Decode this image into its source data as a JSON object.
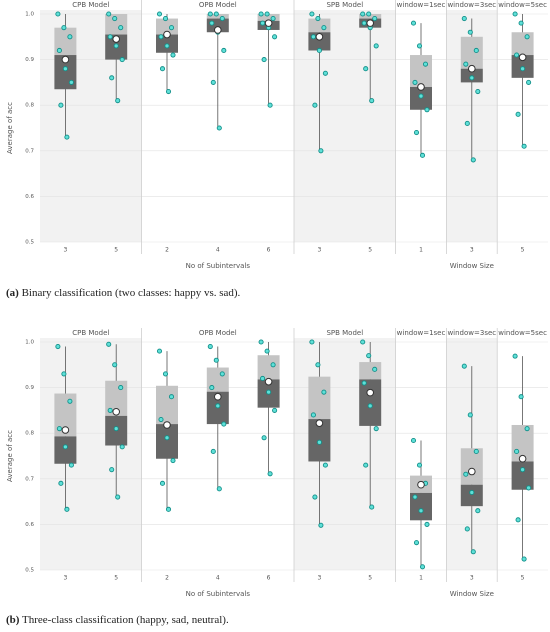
{
  "chart_data": [
    {
      "type": "box",
      "ylabel": "Average of acc",
      "ylim": [
        0.5,
        1.0
      ],
      "yticks": [
        0.5,
        0.6,
        0.7,
        0.8,
        0.9,
        {
          "value": 1.0,
          "label": "1.0"
        }
      ],
      "groups": [
        {
          "label": "No of Subintervals",
          "facets": [
            {
              "title": "CPB Model",
              "boxes": [
                {
                  "category": "3",
                  "min": 0.73,
                  "q1": 0.835,
                  "median": 0.91,
                  "q3": 0.97,
                  "max": 1.0,
                  "mean": 0.9,
                  "points": [
                    1.0,
                    0.97,
                    0.95,
                    0.92,
                    0.88,
                    0.85,
                    0.8,
                    0.73
                  ]
                },
                {
                  "category": "5",
                  "min": 0.81,
                  "q1": 0.9,
                  "median": 0.955,
                  "q3": 1.0,
                  "max": 1.0,
                  "mean": 0.945,
                  "points": [
                    1.0,
                    0.99,
                    0.97,
                    0.95,
                    0.93,
                    0.9,
                    0.86,
                    0.81
                  ]
                }
              ]
            },
            {
              "title": "OPB Model",
              "boxes": [
                {
                  "category": "2",
                  "min": 0.83,
                  "q1": 0.915,
                  "median": 0.955,
                  "q3": 0.99,
                  "max": 1.0,
                  "mean": 0.955,
                  "points": [
                    1.0,
                    0.99,
                    0.97,
                    0.95,
                    0.93,
                    0.91,
                    0.88,
                    0.83
                  ]
                },
                {
                  "category": "4",
                  "min": 0.75,
                  "q1": 0.96,
                  "median": 0.99,
                  "q3": 1.0,
                  "max": 1.0,
                  "mean": 0.965,
                  "points": [
                    1.0,
                    1.0,
                    0.99,
                    0.98,
                    0.96,
                    0.92,
                    0.85,
                    0.75
                  ]
                },
                {
                  "category": "6",
                  "min": 0.8,
                  "q1": 0.965,
                  "median": 0.985,
                  "q3": 1.0,
                  "max": 1.0,
                  "mean": 0.98,
                  "points": [
                    1.0,
                    1.0,
                    0.99,
                    0.98,
                    0.97,
                    0.95,
                    0.9,
                    0.8
                  ]
                }
              ]
            },
            {
              "title": "SPB Model",
              "boxes": [
                {
                  "category": "3",
                  "min": 0.7,
                  "q1": 0.92,
                  "median": 0.96,
                  "q3": 0.99,
                  "max": 1.0,
                  "mean": 0.95,
                  "points": [
                    1.0,
                    0.99,
                    0.97,
                    0.95,
                    0.92,
                    0.87,
                    0.8,
                    0.7
                  ]
                },
                {
                  "category": "5",
                  "min": 0.81,
                  "q1": 0.97,
                  "median": 0.99,
                  "q3": 1.0,
                  "max": 1.0,
                  "mean": 0.98,
                  "points": [
                    1.0,
                    1.0,
                    0.99,
                    0.98,
                    0.97,
                    0.93,
                    0.88,
                    0.81
                  ]
                }
              ]
            }
          ]
        },
        {
          "label": "Window Size",
          "facets": [
            {
              "title": "window=1sec",
              "boxes": [
                {
                  "category": "1",
                  "min": 0.69,
                  "q1": 0.79,
                  "median": 0.84,
                  "q3": 0.91,
                  "max": 0.98,
                  "mean": 0.84,
                  "points": [
                    0.98,
                    0.93,
                    0.89,
                    0.85,
                    0.82,
                    0.79,
                    0.74,
                    0.69
                  ]
                }
              ]
            },
            {
              "title": "window=3sec",
              "boxes": [
                {
                  "category": "3",
                  "min": 0.68,
                  "q1": 0.85,
                  "median": 0.88,
                  "q3": 0.95,
                  "max": 0.99,
                  "mean": 0.88,
                  "points": [
                    0.99,
                    0.96,
                    0.92,
                    0.89,
                    0.86,
                    0.83,
                    0.76,
                    0.68
                  ]
                }
              ]
            },
            {
              "title": "window=5sec",
              "boxes": [
                {
                  "category": "5",
                  "min": 0.71,
                  "q1": 0.86,
                  "median": 0.91,
                  "q3": 0.96,
                  "max": 1.0,
                  "mean": 0.905,
                  "points": [
                    1.0,
                    0.98,
                    0.95,
                    0.91,
                    0.88,
                    0.85,
                    0.78,
                    0.71
                  ]
                }
              ]
            }
          ]
        }
      ],
      "caption": {
        "tag": "(a)",
        "text": "Binary classification (two classes: happy vs. sad)."
      }
    },
    {
      "type": "box",
      "ylabel": "Average of acc",
      "ylim": [
        0.5,
        1.0
      ],
      "yticks": [
        0.5,
        0.6,
        0.7,
        0.8,
        0.9,
        {
          "value": 1.0,
          "label": "1.0"
        }
      ],
      "groups": [
        {
          "label": "No of Subintervals",
          "facets": [
            {
              "title": "CPB Model",
              "boxes": [
                {
                  "category": "3",
                  "min": 0.633,
                  "q1": 0.733,
                  "median": 0.793,
                  "q3": 0.887,
                  "max": 0.99,
                  "mean": 0.807,
                  "points": [
                    0.99,
                    0.93,
                    0.87,
                    0.81,
                    0.77,
                    0.73,
                    0.69,
                    0.633
                  ]
                },
                {
                  "category": "5",
                  "min": 0.66,
                  "q1": 0.773,
                  "median": 0.838,
                  "q3": 0.915,
                  "max": 0.995,
                  "mean": 0.847,
                  "points": [
                    0.995,
                    0.95,
                    0.9,
                    0.85,
                    0.81,
                    0.77,
                    0.72,
                    0.66
                  ]
                }
              ]
            },
            {
              "title": "OPB Model",
              "boxes": [
                {
                  "category": "2",
                  "min": 0.633,
                  "q1": 0.744,
                  "median": 0.82,
                  "q3": 0.904,
                  "max": 0.98,
                  "mean": 0.818,
                  "points": [
                    0.98,
                    0.93,
                    0.88,
                    0.83,
                    0.79,
                    0.74,
                    0.69,
                    0.633
                  ]
                },
                {
                  "category": "4",
                  "min": 0.678,
                  "q1": 0.82,
                  "median": 0.891,
                  "q3": 0.944,
                  "max": 0.99,
                  "mean": 0.88,
                  "points": [
                    0.99,
                    0.96,
                    0.93,
                    0.9,
                    0.86,
                    0.82,
                    0.76,
                    0.678
                  ]
                },
                {
                  "category": "6",
                  "min": 0.711,
                  "q1": 0.856,
                  "median": 0.918,
                  "q3": 0.971,
                  "max": 1.0,
                  "mean": 0.913,
                  "points": [
                    1.0,
                    0.98,
                    0.95,
                    0.92,
                    0.89,
                    0.85,
                    0.79,
                    0.711
                  ]
                }
              ]
            },
            {
              "title": "SPB Model",
              "boxes": [
                {
                  "category": "3",
                  "min": 0.598,
                  "q1": 0.738,
                  "median": 0.831,
                  "q3": 0.924,
                  "max": 1.0,
                  "mean": 0.822,
                  "points": [
                    1.0,
                    0.95,
                    0.89,
                    0.84,
                    0.78,
                    0.73,
                    0.66,
                    0.598
                  ]
                },
                {
                  "category": "5",
                  "min": 0.638,
                  "q1": 0.816,
                  "median": 0.918,
                  "q3": 0.956,
                  "max": 1.0,
                  "mean": 0.889,
                  "points": [
                    1.0,
                    0.97,
                    0.94,
                    0.91,
                    0.86,
                    0.81,
                    0.73,
                    0.638
                  ]
                }
              ]
            }
          ]
        },
        {
          "label": "Window Size",
          "facets": [
            {
              "title": "window=1sec",
              "boxes": [
                {
                  "category": "1",
                  "min": 0.507,
                  "q1": 0.609,
                  "median": 0.669,
                  "q3": 0.707,
                  "max": 0.784,
                  "mean": 0.687,
                  "points": [
                    0.784,
                    0.73,
                    0.69,
                    0.66,
                    0.63,
                    0.6,
                    0.56,
                    0.507
                  ]
                }
              ]
            },
            {
              "title": "window=3sec",
              "boxes": [
                {
                  "category": "3",
                  "min": 0.54,
                  "q1": 0.64,
                  "median": 0.687,
                  "q3": 0.767,
                  "max": 0.947,
                  "mean": 0.716,
                  "points": [
                    0.947,
                    0.84,
                    0.76,
                    0.71,
                    0.67,
                    0.63,
                    0.59,
                    0.54
                  ]
                }
              ]
            },
            {
              "title": "window=5sec",
              "boxes": [
                {
                  "category": "5",
                  "min": 0.524,
                  "q1": 0.676,
                  "median": 0.738,
                  "q3": 0.818,
                  "max": 0.969,
                  "mean": 0.744,
                  "points": [
                    0.969,
                    0.88,
                    0.81,
                    0.76,
                    0.72,
                    0.68,
                    0.61,
                    0.524
                  ]
                }
              ]
            }
          ]
        }
      ],
      "caption": {
        "tag": "(b)",
        "text": "Three-class classification (happy, sad, neutral)."
      }
    }
  ]
}
